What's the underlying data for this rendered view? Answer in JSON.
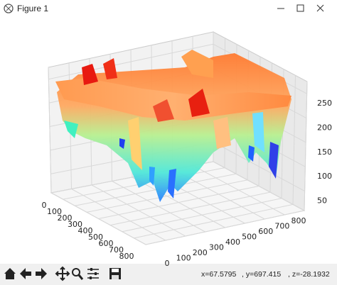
{
  "window": {
    "title": "Figure 1"
  },
  "axes": {
    "xticks": [
      0,
      100,
      200,
      300,
      400,
      500,
      600,
      700,
      800
    ],
    "yticks": [
      0,
      100,
      200,
      300,
      400,
      500,
      600,
      700,
      800
    ],
    "zticks": [
      250,
      200,
      150,
      100,
      50
    ]
  },
  "status": {
    "x": "x=67.5795",
    "y": ", y=697.415",
    "z": ", z=-28.1932"
  }
}
